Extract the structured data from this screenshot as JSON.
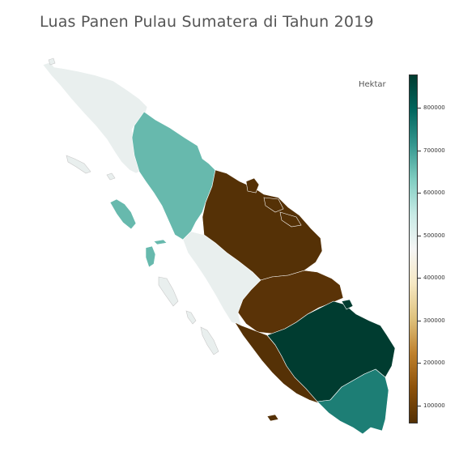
{
  "title": "Luas Panen Pulau Sumatera di Tahun 2019",
  "colorbar": {
    "label": "Hektar",
    "min": 58000,
    "max": 878000,
    "ticks": [
      "100000",
      "200000",
      "300000",
      "400000",
      "500000",
      "600000",
      "700000",
      "800000"
    ],
    "tick_values": [
      100000,
      200000,
      300000,
      400000,
      500000,
      600000,
      700000,
      800000
    ],
    "colormap": [
      "#543005",
      "#8c510a",
      "#bf812d",
      "#dfc27d",
      "#f6e8c3",
      "#f5f5f5",
      "#c7eae5",
      "#80cdc1",
      "#35978f",
      "#01665e",
      "#003c30"
    ]
  },
  "colors": {
    "aceh": "#e9efee",
    "sumatera_utara": "#67b9ad",
    "sumatera_barat": "#e9efee",
    "riau": "#553106",
    "jambi": "#5a3307",
    "bengkulu": "#553106",
    "sumatera_selatan": "#003c30",
    "lampung": "#1d7e75",
    "border": "#c8c8c8"
  }
}
